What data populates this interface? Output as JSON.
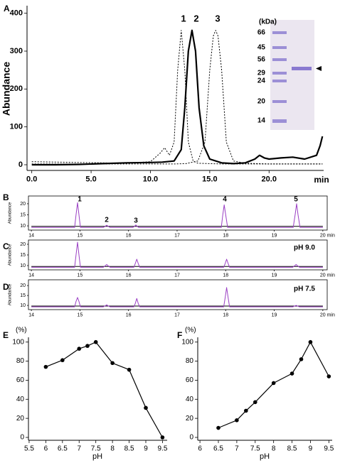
{
  "chart_data": [
    {
      "type": "line",
      "label": "A",
      "y_label": "Abundance",
      "x_label": "min",
      "xlim": [
        -0.4,
        24.6
      ],
      "ylim": [
        -15,
        420
      ],
      "xticks": [
        {
          "value": 0,
          "label": "0.0"
        },
        {
          "value": 5,
          "label": "5.0"
        },
        {
          "value": 10,
          "label": "10.0"
        },
        {
          "value": 15,
          "label": "15.0"
        },
        {
          "value": 20,
          "label": "20.0"
        }
      ],
      "yticks": [
        0,
        100,
        200,
        300,
        400
      ],
      "peak_labels": [
        "1",
        "2",
        "3"
      ],
      "series": [
        {
          "color": "#000000",
          "style": "dotted",
          "x": [
            0,
            4,
            8,
            10,
            10.8,
            11.2,
            11.6,
            12,
            12.3,
            12.6,
            12.9,
            13.2,
            13.6,
            14,
            16,
            20,
            24.5
          ],
          "values": [
            8,
            6,
            4,
            8,
            30,
            45,
            25,
            60,
            250,
            355,
            250,
            60,
            10,
            4,
            2,
            2,
            2
          ]
        },
        {
          "color": "#000000",
          "style": "solid",
          "x": [
            0,
            2,
            4,
            6,
            8,
            10,
            11,
            12,
            12.6,
            12.9,
            13.2,
            13.5,
            13.8,
            14.1,
            14.5,
            15,
            16,
            17,
            18,
            18.8,
            19.2,
            19.6,
            20,
            21,
            22,
            23,
            24,
            24.3,
            24.5
          ],
          "values": [
            0,
            0,
            1,
            3,
            5,
            6,
            7,
            10,
            40,
            150,
            300,
            355,
            300,
            150,
            50,
            15,
            5,
            3,
            5,
            15,
            25,
            18,
            15,
            18,
            20,
            15,
            25,
            50,
            75
          ]
        },
        {
          "color": "#000000",
          "style": "dotted",
          "x": [
            0,
            6,
            12,
            13,
            14,
            14.6,
            15,
            15.3,
            15.5,
            15.7,
            16,
            16.4,
            17,
            18,
            20,
            24.5
          ],
          "values": [
            2,
            2,
            2,
            3,
            10,
            60,
            250,
            340,
            355,
            340,
            250,
            60,
            10,
            4,
            2,
            2
          ]
        }
      ],
      "inset": {
        "unit_label": "(kDa)",
        "markers": [
          66,
          45,
          56,
          29,
          24,
          20,
          14
        ]
      }
    },
    {
      "type": "line",
      "label": "B",
      "y_label": "Abundance",
      "xlim": [
        13.94,
        20.09
      ],
      "ylim": [
        8.1,
        23.5
      ],
      "xticks": [
        14,
        15,
        16,
        17,
        18,
        19,
        {
          "value": 20,
          "label": "20 min"
        }
      ],
      "yticks": [
        10,
        15,
        20
      ],
      "peak_labels": [
        "1",
        "2",
        "3",
        "4",
        "5"
      ],
      "series": [
        {
          "color": "#000000",
          "x": [
            14,
            20
          ],
          "values": [
            9.8,
            9.8
          ]
        },
        {
          "color": "#9a3fc4",
          "x": [
            14,
            14.89,
            14.92,
            14.95,
            14.98,
            15.01,
            15.48,
            15.52,
            15.55,
            15.58,
            15.62,
            16.09,
            16.12,
            16.15,
            16.18,
            16.21,
            17.91,
            17.94,
            17.97,
            18.0,
            18.04,
            19.39,
            19.43,
            19.46,
            19.49,
            19.53,
            20
          ],
          "values": [
            9.3,
            9.3,
            15,
            20.5,
            15,
            9.3,
            9.3,
            9.8,
            10.3,
            9.8,
            9.3,
            9.3,
            9.8,
            10.4,
            9.8,
            9.3,
            9.3,
            15,
            19.5,
            15,
            9.3,
            9.3,
            15,
            20,
            15,
            9.3,
            9.3
          ]
        }
      ]
    },
    {
      "type": "line",
      "label": "C",
      "y_label": "Abundance",
      "annotation": "pH 9.0",
      "xlim": [
        13.94,
        20.09
      ],
      "ylim": [
        8,
        22
      ],
      "xticks": [
        14,
        15,
        16,
        17,
        18,
        19,
        {
          "value": 20,
          "label": "20 min"
        }
      ],
      "yticks": [
        10,
        15,
        20
      ],
      "series": [
        {
          "color": "#000000",
          "x": [
            14,
            20
          ],
          "values": [
            9.6,
            9.6
          ]
        },
        {
          "color": "#9a3fc4",
          "x": [
            14,
            14.89,
            14.92,
            14.95,
            14.98,
            15.01,
            15.48,
            15.52,
            15.55,
            15.58,
            15.62,
            16.11,
            16.14,
            16.17,
            16.2,
            16.23,
            17.96,
            17.99,
            18.02,
            18.05,
            18.08,
            19.38,
            19.42,
            19.45,
            19.48,
            19.52,
            20
          ],
          "values": [
            9.2,
            9.2,
            15,
            21,
            15,
            9.2,
            9.2,
            9.9,
            10.5,
            9.9,
            9.2,
            9.2,
            11,
            13,
            11,
            9.2,
            9.2,
            11,
            13,
            11,
            9.2,
            9.2,
            9.9,
            10.5,
            9.9,
            9.2,
            9.2
          ]
        }
      ]
    },
    {
      "type": "line",
      "label": "D",
      "y_label": "Abundance",
      "annotation": "pH 7.5",
      "xlim": [
        13.94,
        20.09
      ],
      "ylim": [
        7.9,
        22.9
      ],
      "xticks": [
        14,
        15,
        16,
        17,
        18,
        19,
        {
          "value": 20,
          "label": "20 min"
        }
      ],
      "yticks": [
        10,
        15,
        20
      ],
      "series": [
        {
          "color": "#000000",
          "x": [
            14,
            20
          ],
          "values": [
            9.7,
            9.7
          ]
        },
        {
          "color": "#9a3fc4",
          "x": [
            14,
            14.89,
            14.92,
            14.95,
            14.98,
            15.01,
            15.48,
            15.52,
            15.55,
            15.58,
            15.62,
            16.11,
            16.14,
            16.17,
            16.2,
            16.23,
            17.96,
            17.99,
            18.02,
            18.05,
            18.08,
            19.38,
            19.42,
            19.45,
            19.48,
            19.52,
            20
          ],
          "values": [
            9.3,
            9.3,
            12,
            14,
            12,
            9.3,
            9.3,
            9.8,
            10.3,
            9.8,
            9.3,
            9.3,
            11,
            13.5,
            11,
            9.3,
            9.3,
            14,
            19,
            14,
            9.3,
            9.3,
            9.7,
            10,
            9.7,
            9.3,
            9.3
          ]
        }
      ]
    },
    {
      "type": "line",
      "label": "E",
      "y_label": "(%)",
      "x_label": "pH",
      "markers": true,
      "xlim": [
        5.48,
        9.64
      ],
      "ylim": [
        -3,
        105
      ],
      "xticks": [
        5.5,
        6,
        6.5,
        7,
        7.5,
        8,
        8.5,
        9,
        9.5
      ],
      "yticks": [
        0,
        20,
        40,
        60,
        80,
        100
      ],
      "series": [
        {
          "color": "#000000",
          "x": [
            6,
            6.5,
            7,
            7.25,
            7.5,
            8,
            8.5,
            9,
            9.5
          ],
          "values": [
            74,
            81,
            93,
            96,
            100,
            78,
            71,
            31,
            0
          ]
        }
      ]
    },
    {
      "type": "line",
      "label": "F",
      "y_label": "(%)",
      "x_label": "pH",
      "markers": true,
      "xlim": [
        5.94,
        9.59
      ],
      "ylim": [
        -3,
        105
      ],
      "xticks": [
        6,
        6.5,
        7,
        7.5,
        8,
        8.5,
        9,
        9.5
      ],
      "yticks": [
        0,
        20,
        40,
        60,
        80,
        100
      ],
      "series": [
        {
          "color": "#000000",
          "x": [
            6.5,
            7,
            7.25,
            7.5,
            8,
            8.5,
            8.75,
            9,
            9.5
          ],
          "values": [
            10,
            18,
            28,
            37,
            57,
            67,
            82,
            100,
            64
          ]
        }
      ]
    }
  ]
}
